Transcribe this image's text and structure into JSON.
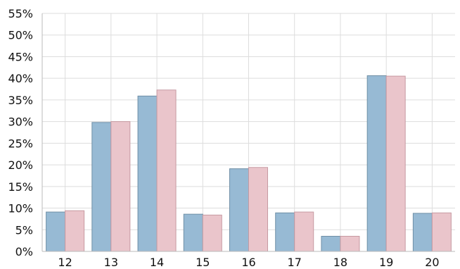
{
  "chart_data": {
    "type": "bar",
    "title": "",
    "xlabel": "",
    "ylabel": "",
    "categories": [
      "12",
      "13",
      "14",
      "15",
      "16",
      "17",
      "18",
      "19",
      "20"
    ],
    "series": [
      {
        "values": [
          9.1,
          29.8,
          35.9,
          8.6,
          19.1,
          8.9,
          3.5,
          40.6,
          8.8
        ]
      },
      {
        "values": [
          9.4,
          30.0,
          37.3,
          8.4,
          19.4,
          9.1,
          3.5,
          40.5,
          8.9
        ]
      }
    ],
    "ylim": [
      0,
      55
    ],
    "yticks": [
      "0%",
      "5%",
      "10%",
      "15%",
      "20%",
      "25%",
      "30%",
      "35%",
      "40%",
      "45%",
      "50%",
      "55%"
    ],
    "grid": true,
    "legend": "none",
    "colors": {
      "series": [
        "#97bad4",
        "#eac5cb"
      ],
      "series_stroke": [
        "#6f8fa6",
        "#c79aa2"
      ],
      "grid": "#dddddd",
      "axis": "#bbbbbb",
      "text": "#111111"
    }
  }
}
